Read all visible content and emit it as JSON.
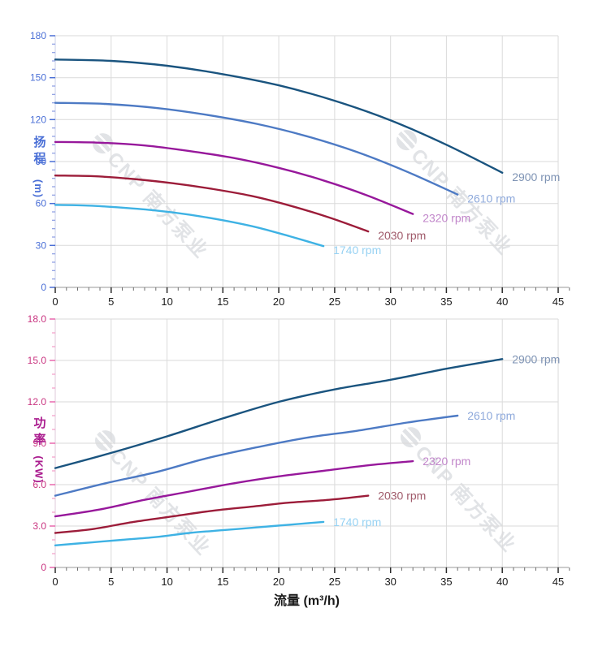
{
  "watermark": {
    "text": "CNP 南方泵业"
  },
  "chart_data": {
    "type": "line",
    "grid_color": "#dadada",
    "x_axis": {
      "title": "流量 (m³/h)",
      "min": 0,
      "max": 45,
      "major_step": 5,
      "minor_step": 1,
      "tick_labels": [
        "0",
        "5",
        "10",
        "15",
        "20",
        "25",
        "30",
        "35",
        "40",
        "45"
      ],
      "text_color": "#1a1a1a",
      "line_color": "#999999",
      "major_tick_color": "#2b2b2b",
      "minor_tick_color": "#6e6e6e"
    },
    "charts": [
      {
        "id": "head",
        "y_axis": {
          "title": "扬程",
          "unit": "(m)",
          "min": 0,
          "max": 180,
          "major_step": 30,
          "minor_step": 6,
          "tick_labels": [
            "0",
            "30",
            "60",
            "90",
            "120",
            "150",
            "180"
          ],
          "text_color": "#4a6fd6",
          "title_color": "#4a6fd6",
          "line_color": "#c9cfe9",
          "major_tick_color": "#4a6fd6",
          "minor_tick_color": "#8b9ce2"
        }
      },
      {
        "id": "power",
        "y_axis": {
          "title": "功率",
          "unit": "(KW)",
          "min": 0,
          "max": 18,
          "major_step": 3,
          "minor_step": 1,
          "tick_labels": [
            "0",
            "3.0",
            "6.0",
            "9.0",
            "12.0",
            "15.0",
            "18.0"
          ],
          "text_color": "#c93480",
          "title_color": "#aa1b8e",
          "line_color": "#dfc9da",
          "major_tick_color": "#e868ae",
          "minor_tick_color": "#f49cc8"
        }
      }
    ],
    "series": [
      {
        "label": "2900 rpm",
        "color": "#1a547f",
        "label_color": "#7e93b4",
        "q": [
          0,
          5,
          10,
          15,
          20,
          25,
          30,
          35,
          40
        ],
        "head": [
          163,
          162,
          158.5,
          152.5,
          144.5,
          133.5,
          119.5,
          102,
          82
        ],
        "power": [
          7.2,
          8.3,
          9.5,
          10.8,
          12.0,
          12.9,
          13.6,
          14.4,
          15.1
        ]
      },
      {
        "label": "2610 rpm",
        "color": "#4d7ac4",
        "label_color": "#8ea9db",
        "q": [
          0,
          4.5,
          9,
          13.5,
          18,
          22.5,
          27,
          31.5,
          36
        ],
        "head": [
          132,
          131.2,
          128.4,
          123.5,
          117,
          108.1,
          96.8,
          82.6,
          66.4
        ],
        "power": [
          5.2,
          6.1,
          6.9,
          7.9,
          8.7,
          9.4,
          9.9,
          10.5,
          11.0
        ]
      },
      {
        "label": "2320 rpm",
        "color": "#97189b",
        "label_color": "#c186ca",
        "q": [
          0,
          4,
          8,
          12,
          16,
          20,
          24,
          28,
          32
        ],
        "head": [
          104,
          103.5,
          101.5,
          97.5,
          92.5,
          85.5,
          76.5,
          65.5,
          52.5
        ],
        "power": [
          3.7,
          4.2,
          4.9,
          5.5,
          6.1,
          6.6,
          7.0,
          7.4,
          7.7
        ]
      },
      {
        "label": "2030 rpm",
        "color": "#9c1c39",
        "label_color": "#a05b6b",
        "q": [
          0,
          3.5,
          7,
          10.5,
          14,
          17.5,
          21,
          24.5,
          28
        ],
        "head": [
          80,
          79.5,
          77.5,
          74.5,
          70.5,
          65.5,
          58.5,
          50,
          40
        ],
        "power": [
          2.5,
          2.8,
          3.3,
          3.7,
          4.1,
          4.4,
          4.7,
          4.9,
          5.2
        ]
      },
      {
        "label": "1740 rpm",
        "color": "#3eb2e4",
        "label_color": "#97d2f3",
        "q": [
          0,
          3,
          6,
          9,
          12,
          15,
          18,
          21,
          24
        ],
        "head": [
          59,
          58.5,
          57,
          55,
          52,
          48,
          43,
          36.5,
          29.5
        ],
        "power": [
          1.6,
          1.8,
          2.0,
          2.2,
          2.5,
          2.7,
          2.9,
          3.1,
          3.3
        ]
      }
    ]
  }
}
